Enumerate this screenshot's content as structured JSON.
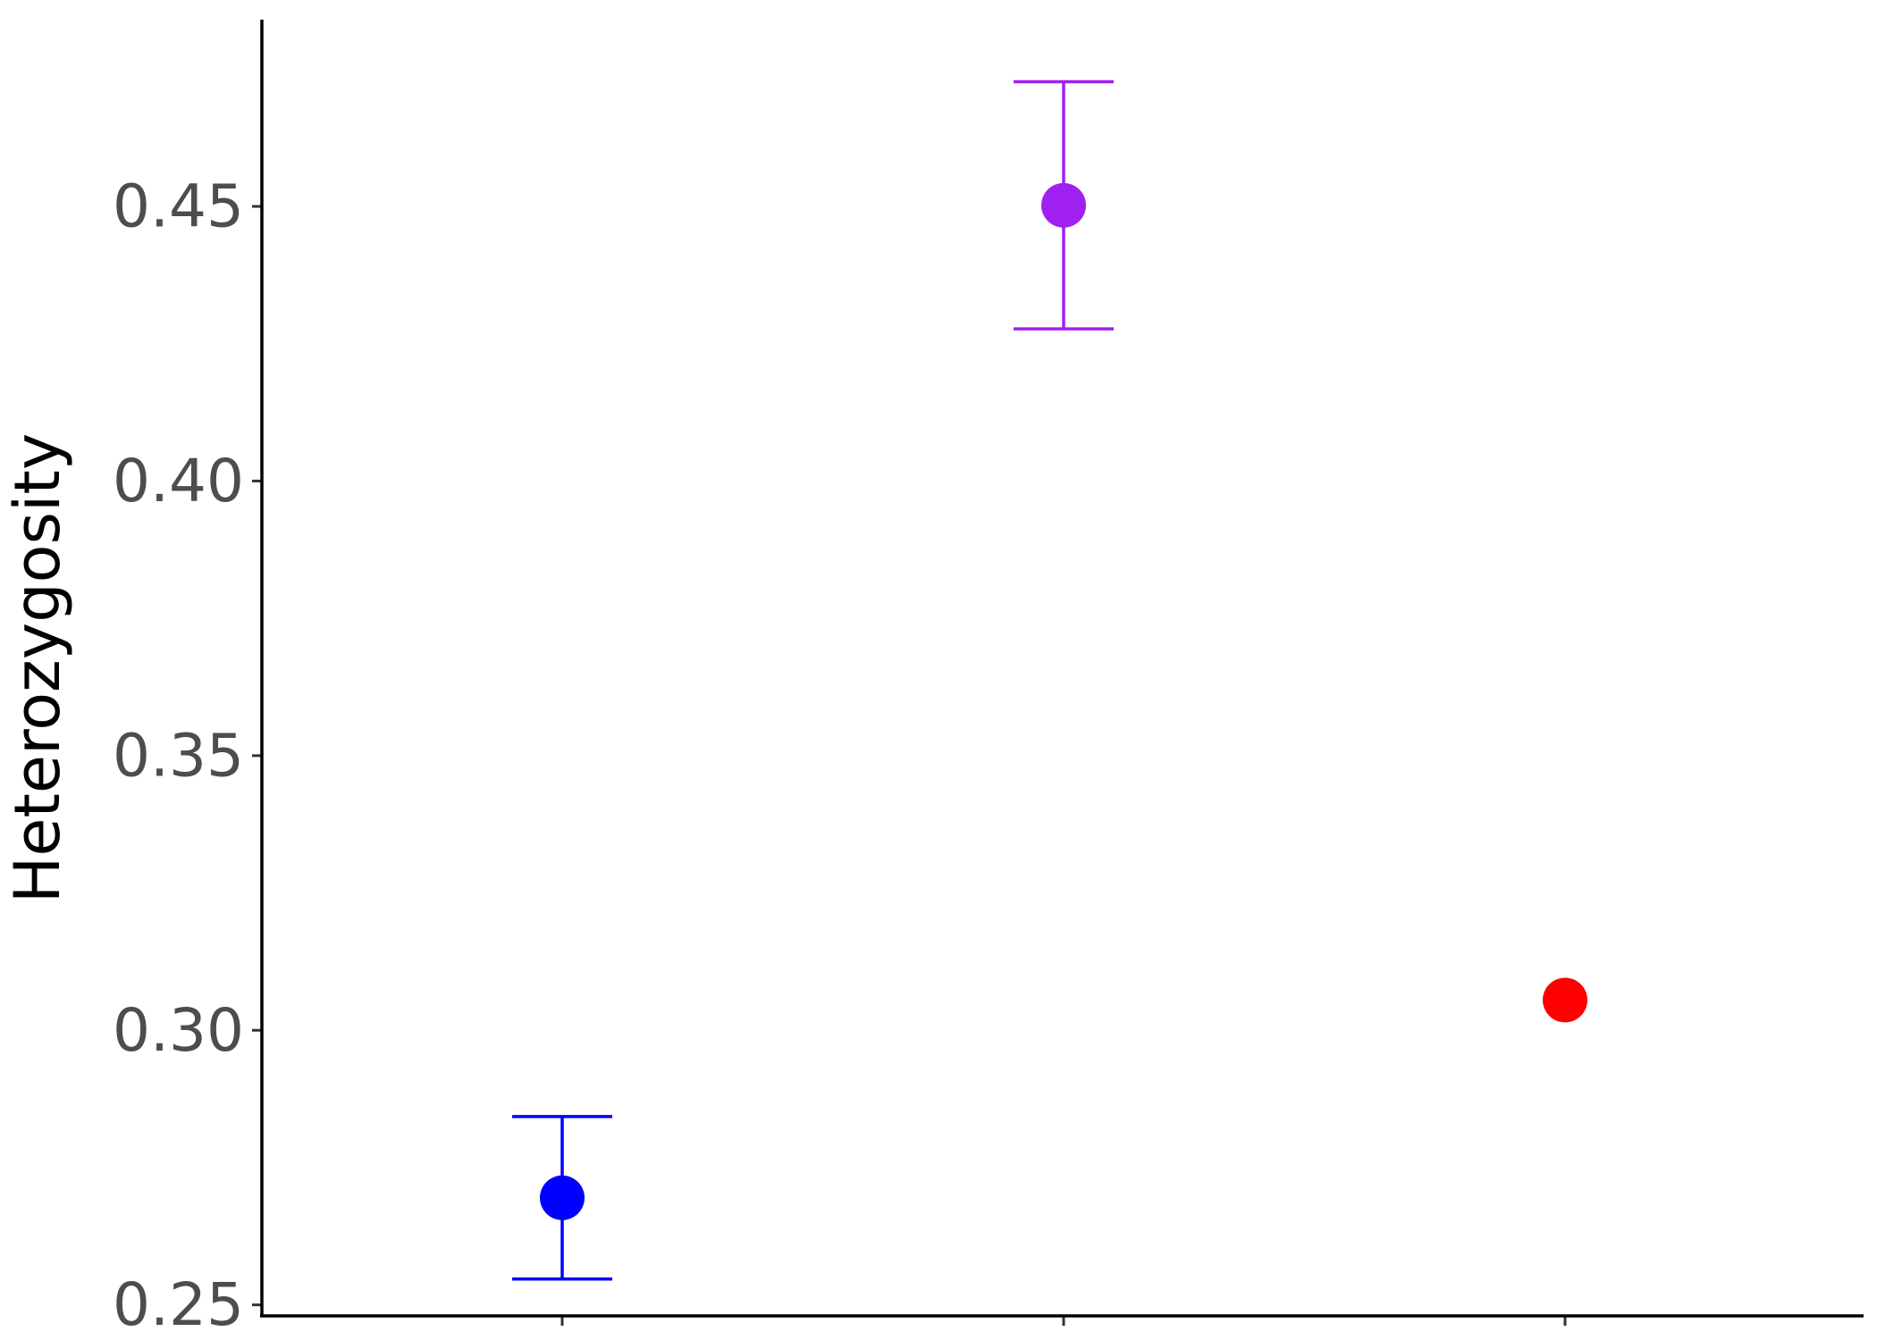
{
  "chart_data": {
    "type": "scatter",
    "title": "",
    "xlabel": "",
    "ylabel": "Heterozygosity",
    "ylim": [
      0.248,
      0.484
    ],
    "yticks": [
      0.25,
      0.3,
      0.35,
      0.4,
      0.45
    ],
    "ytick_labels": [
      "0.25",
      "0.30",
      "0.35",
      "0.40",
      "0.45"
    ],
    "categories": [
      "",
      "",
      ""
    ],
    "grid": false,
    "legend": "none",
    "points": [
      {
        "category_index": 0,
        "y": 0.2695,
        "ymin": 0.2547,
        "ymax": 0.2843,
        "color": "#0000ff"
      },
      {
        "category_index": 1,
        "y": 0.4502,
        "ymin": 0.4277,
        "ymax": 0.4727,
        "color": "#a020f0"
      },
      {
        "category_index": 2,
        "y": 0.3055,
        "color": "#ff0000"
      }
    ]
  }
}
